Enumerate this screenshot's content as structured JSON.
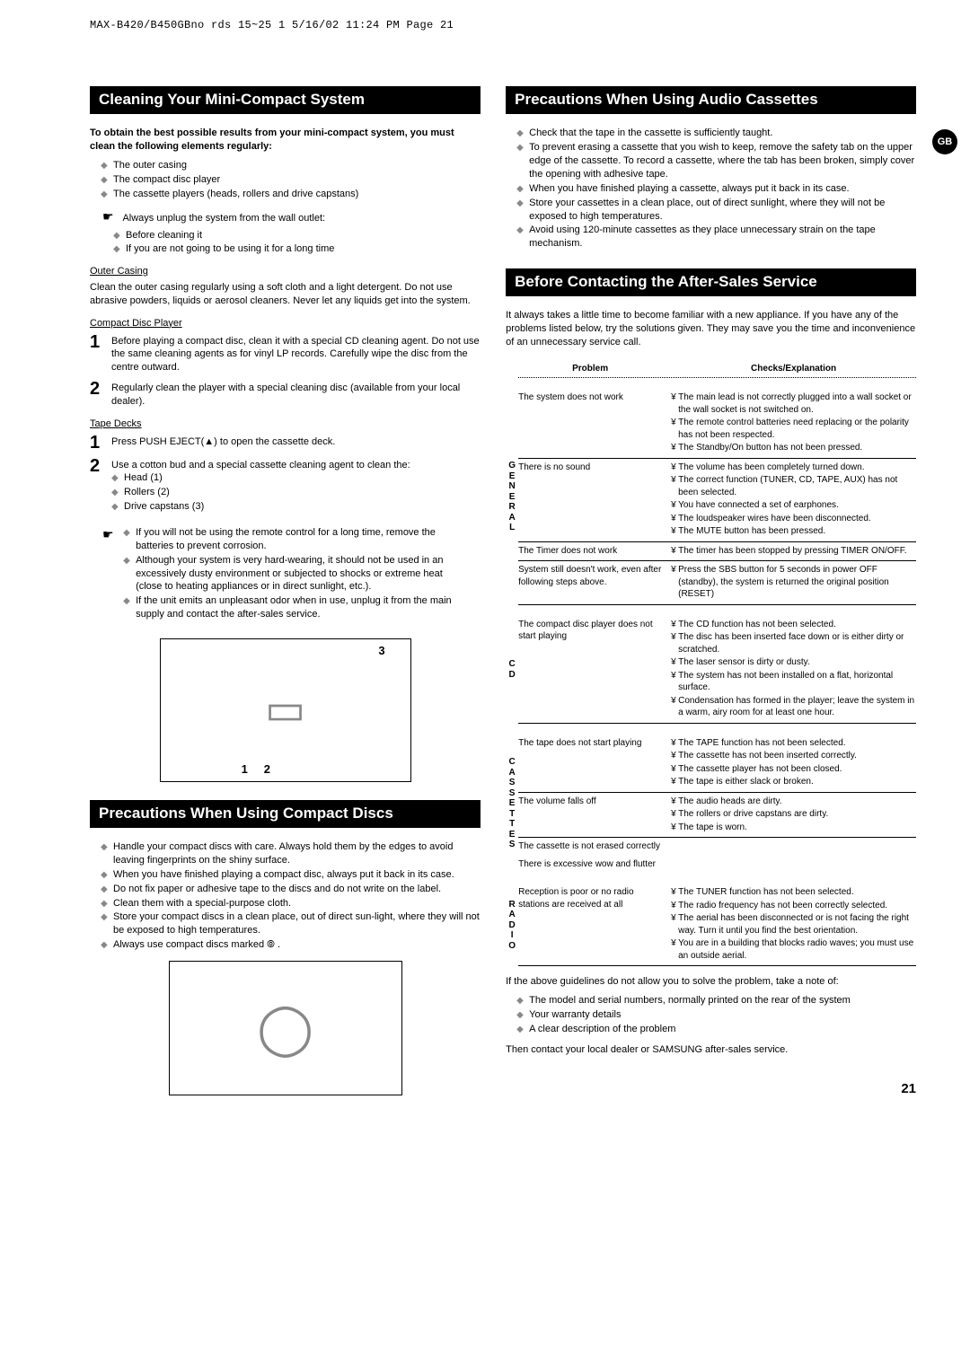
{
  "header_text": "MAX-B420/B450GBno rds 15~25 1  5/16/02 11:24 PM  Page 21",
  "gb_badge": "GB",
  "page_number": "21",
  "cleaning": {
    "title": "Cleaning Your Mini-Compact System",
    "intro": "To obtain the best possible results from your mini-compact system, you must clean the following elements regularly:",
    "items": [
      "The outer casing",
      "The compact disc player",
      "The cassette players (heads, rollers and drive capstans)"
    ],
    "unplug_lead": "Always unplug the system from the wall outlet:",
    "unplug_items": [
      "Before cleaning it",
      "If you are not going to be using it for a long time"
    ],
    "outer_heading": "Outer Casing",
    "outer_text": "Clean the outer casing regularly using a soft cloth and a light detergent. Do not use abrasive powders, liquids or aerosol cleaners. Never let any liquids get into the system.",
    "cd_heading": "Compact Disc Player",
    "cd_steps": [
      "Before playing a compact disc, clean it with a special CD cleaning agent. Do not use the same cleaning agents as for vinyl LP records. Carefully wipe the disc from the centre outward.",
      "Regularly clean the player with a special cleaning disc (available from your local dealer)."
    ],
    "tape_heading": "Tape Decks",
    "tape_step1": "Press PUSH EJECT(▲) to open the cassette deck.",
    "tape_step2_lead": "Use a cotton bud and a special cassette cleaning agent to clean the:",
    "tape_step2_items": [
      "Head (1)",
      "Rollers (2)",
      "Drive capstans (3)"
    ],
    "notes": [
      "If you will not be using the remote control for a long time, remove the batteries to prevent corrosion.",
      "Although your system is very hard-wearing, it should not be used in an excessively dusty environment or subjected to shocks or extreme heat (close to heating appliances or in direct sunlight, etc.).",
      "If the unit emits an unpleasant odor when in use, unplug it from the main supply and contact the after-sales service."
    ],
    "diag_top": "3",
    "diag_bottom": "12"
  },
  "discs": {
    "title": "Precautions When Using Compact Discs",
    "items": [
      "Handle your compact discs with care. Always hold them by the edges to avoid leaving fingerprints on the shiny surface.",
      "When you have finished playing a compact disc, always put it back in its case.",
      "Do not fix paper or adhesive tape to the discs and do not write on the label.",
      "Clean them with a special-purpose cloth.",
      "Store your compact discs in a clean place, out of direct sun-light, where they will not be exposed to high temperatures.",
      "Always use compact discs marked ⦾ ."
    ]
  },
  "cassettes": {
    "title": "Precautions When Using Audio Cassettes",
    "items": [
      "Check that the tape in the cassette is sufficiently taught.",
      "To prevent erasing a cassette that you wish to keep, remove the safety tab on the upper edge of the cassette. To record a cassette, where the tab has been broken, simply cover the opening with adhesive tape.",
      "When you have finished playing a cassette, always put it back in its case.",
      "Store your cassettes in a clean place, out of direct sunlight, where they will not be exposed to high temperatures.",
      "Avoid using 120-minute cassettes as they place unnecessary strain on the tape mechanism."
    ]
  },
  "service": {
    "title": "Before Contacting the After-Sales Service",
    "intro": "It always takes a little time to become familiar with a new appliance. If you have any of the problems listed below, try the solutions given. They may save you the time and inconvenience of an unnecessary service call.",
    "th_problem": "Problem",
    "th_checks": "Checks/Explanation",
    "groups": [
      {
        "label": "GENERAL",
        "rows": [
          {
            "problem": "The system does not work",
            "checks": [
              "The main lead is not correctly plugged into a wall socket or the wall socket is not switched on.",
              "The remote control batteries need replacing or the polarity has not been respected.",
              "The Standby/On button has not been pressed."
            ]
          },
          {
            "problem": "There is no sound",
            "checks": [
              "The volume has been completely turned down.",
              "The correct function (TUNER, CD, TAPE, AUX) has not been selected.",
              "You have connected a set of earphones.",
              "The loudspeaker wires have been disconnected.",
              "The MUTE button has been pressed."
            ]
          },
          {
            "problem": "The Timer does not work",
            "checks": [
              "The timer has been stopped by pressing TIMER ON/OFF."
            ]
          },
          {
            "problem": "System still doesn't work, even after following steps above.",
            "checks": [
              "Press the SBS button for 5 seconds in power OFF (standby), the system is returned the original position (RESET)"
            ]
          }
        ]
      },
      {
        "label": "CD",
        "rows": [
          {
            "problem": "The compact disc player does not start playing",
            "checks": [
              "The CD function has not been selected.",
              "The disc has been inserted face down or is either dirty or scratched.",
              "The laser sensor is dirty or dusty.",
              "The system has not been installed on a flat, horizontal surface.",
              "Condensation has formed in the player; leave the system in a warm, airy room for at least one hour."
            ]
          }
        ]
      },
      {
        "label": "CASSETTES",
        "rows": [
          {
            "problem": "The tape does not start playing",
            "checks": [
              "The TAPE function has not been selected.",
              "The cassette has not been inserted correctly.",
              "The cassette player has not been closed.",
              "The tape is either slack or broken."
            ]
          },
          {
            "problem": "The volume falls off",
            "checks": [
              "The audio heads are dirty.",
              "The rollers or drive capstans are dirty.",
              "The tape is worn."
            ]
          },
          {
            "problem": "The cassette is not erased correctly",
            "checks": [],
            "noborder": true
          },
          {
            "problem": "There is excessive wow and flutter",
            "checks": [],
            "noborder": true
          }
        ]
      },
      {
        "label": "RADIO",
        "rows": [
          {
            "problem": "Reception is poor or no radio stations are received at all",
            "checks": [
              "The TUNER function has not been selected.",
              "The radio frequency has not been correctly selected.",
              "The aerial has been disconnected or is not facing the right way. Turn it until you find the best orientation.",
              "You are in a building that blocks radio waves; you must use an outside aerial."
            ]
          }
        ]
      }
    ],
    "closing_lead": "If the above guidelines do not allow you to solve the problem, take a note of:",
    "closing_items": [
      "The model and serial numbers, normally printed on the rear of the system",
      "Your warranty details",
      "A clear description of the problem"
    ],
    "closing_tail": "Then contact your local dealer or SAMSUNG after-sales service."
  }
}
